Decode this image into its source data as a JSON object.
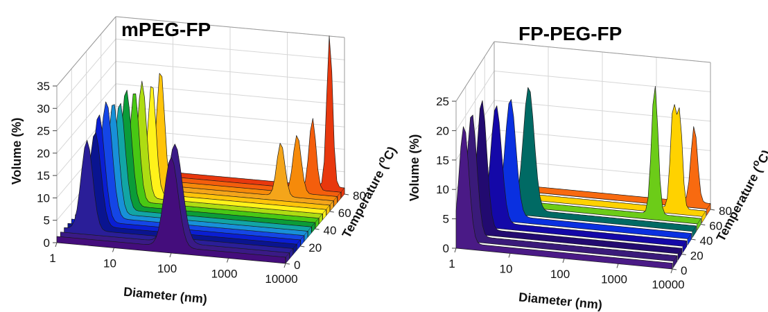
{
  "chart_data": [
    {
      "type": "area",
      "title": "mPEG-FP",
      "xlabel": "Diameter (nm)",
      "ylabel": "Volume (%)",
      "zlabel_main": "Temperature (",
      "zlabel_sup": "o",
      "zlabel_end": "C)",
      "x_scale": "log",
      "xlim": [
        1,
        10000
      ],
      "ylim": [
        0,
        35
      ],
      "zlim": [
        0,
        80
      ],
      "x_ticks": [
        "1",
        "10",
        "100",
        "1000",
        "10000"
      ],
      "y_ticks": [
        "0",
        "5",
        "10",
        "15",
        "20",
        "25",
        "30",
        "35"
      ],
      "z_ticks": [
        "0",
        "20",
        "40",
        "60",
        "80"
      ],
      "series": [
        {
          "temperature": 80,
          "color": "#e8380e",
          "peaks": [
            {
              "x": 5500,
              "y": 34,
              "w": 0.05
            }
          ]
        },
        {
          "temperature": 75,
          "color": "#f45e0c",
          "peaks": [
            {
              "x": 3200,
              "y": 16,
              "w": 0.06
            }
          ]
        },
        {
          "temperature": 70,
          "color": "#f68a0a",
          "peaks": [
            {
              "x": 2000,
              "y": 13,
              "w": 0.07
            }
          ]
        },
        {
          "temperature": 65,
          "color": "#f4a51a",
          "peaks": [
            {
              "x": 1200,
              "y": 12,
              "w": 0.07
            }
          ]
        },
        {
          "temperature": 60,
          "color": "#ffc40a",
          "peaks": [
            {
              "x": 11,
              "y": 27,
              "w": 0.07
            }
          ]
        },
        {
          "temperature": 55,
          "color": "#fff21a",
          "peaks": [
            {
              "x": 9,
              "y": 25,
              "w": 0.07
            }
          ]
        },
        {
          "temperature": 50,
          "color": "#aedc12",
          "peaks": [
            {
              "x": 7,
              "y": 26,
              "w": 0.08
            }
          ]
        },
        {
          "temperature": 45,
          "color": "#48c814",
          "peaks": [
            {
              "x": 6,
              "y": 25,
              "w": 0.08
            }
          ]
        },
        {
          "temperature": 40,
          "color": "#0b9c38",
          "peaks": [
            {
              "x": 5,
              "y": 26,
              "w": 0.09
            }
          ]
        },
        {
          "temperature": 35,
          "color": "#12a5a5",
          "peaks": [
            {
              "x": 4.5,
              "y": 24,
              "w": 0.09
            }
          ]
        },
        {
          "temperature": 30,
          "color": "#1890d8",
          "peaks": [
            {
              "x": 4,
              "y": 25,
              "w": 0.09
            }
          ]
        },
        {
          "temperature": 25,
          "color": "#1446e6",
          "peaks": [
            {
              "x": 3.5,
              "y": 26,
              "w": 0.1
            }
          ]
        },
        {
          "temperature": 20,
          "color": "#0a1ed2",
          "peaks": [
            {
              "x": 3,
              "y": 24,
              "w": 0.1
            }
          ]
        },
        {
          "temperature": 15,
          "color": "#0a1490",
          "peaks": [
            {
              "x": 3,
              "y": 21,
              "w": 0.1
            }
          ]
        },
        {
          "temperature": 10,
          "color": "#2a1e98",
          "peaks": [
            {
              "x": 2.5,
              "y": 20,
              "w": 0.1
            }
          ]
        },
        {
          "temperature": 5,
          "color": "#3a1a86",
          "peaks": [
            {
              "x": 100,
              "y": 22,
              "w": 0.13
            }
          ]
        },
        {
          "temperature": 0,
          "color": "#440d7c",
          "peaks": [
            {
              "x": 100,
              "y": 20,
              "w": 0.12
            }
          ]
        }
      ]
    },
    {
      "type": "area",
      "title": "FP-PEG-FP",
      "xlabel": "Diameter (nm)",
      "ylabel": "Volume (%)",
      "zlabel_main": "Temperature (",
      "zlabel_sup": "o",
      "zlabel_end": "C)",
      "x_scale": "log",
      "xlim": [
        1,
        10000
      ],
      "ylim": [
        0,
        25
      ],
      "zlim": [
        0,
        80
      ],
      "x_ticks": [
        "1",
        "10",
        "100",
        "1000",
        "10000"
      ],
      "y_ticks": [
        "0",
        "5",
        "10",
        "15",
        "20",
        "25"
      ],
      "z_ticks": [
        "0",
        "20",
        "40",
        "60",
        "80"
      ],
      "series": [
        {
          "temperature": 80,
          "color": "#f86a10",
          "peaks": [
            {
              "x": 5000,
              "y": 13,
              "w": 0.06
            }
          ]
        },
        {
          "temperature": 70,
          "color": "#ffd200",
          "peaks": [
            {
              "x": 2500,
              "y": 17,
              "w": 0.05
            },
            {
              "x": 3300,
              "y": 16,
              "w": 0.05
            }
          ]
        },
        {
          "temperature": 60,
          "color": "#6ccc18",
          "peaks": [
            {
              "x": 1400,
              "y": 22,
              "w": 0.06
            }
          ]
        },
        {
          "temperature": 50,
          "color": "#006a64",
          "peaks": [
            {
              "x": 8,
              "y": 21,
              "w": 0.1
            }
          ]
        },
        {
          "temperature": 40,
          "color": "#0a30e0",
          "peaks": [
            {
              "x": 4.5,
              "y": 20,
              "w": 0.1
            }
          ]
        },
        {
          "temperature": 30,
          "color": "#1408a8",
          "peaks": [
            {
              "x": 3,
              "y": 20,
              "w": 0.1
            }
          ]
        },
        {
          "temperature": 20,
          "color": "#220a70",
          "peaks": [
            {
              "x": 2,
              "y": 22,
              "w": 0.09
            }
          ]
        },
        {
          "temperature": 10,
          "color": "#3a1a7a",
          "peaks": [
            {
              "x": 1.6,
              "y": 21,
              "w": 0.09
            }
          ]
        },
        {
          "temperature": 0,
          "color": "#4a1a86",
          "peaks": [
            {
              "x": 1.4,
              "y": 20,
              "w": 0.09
            }
          ]
        }
      ]
    }
  ]
}
